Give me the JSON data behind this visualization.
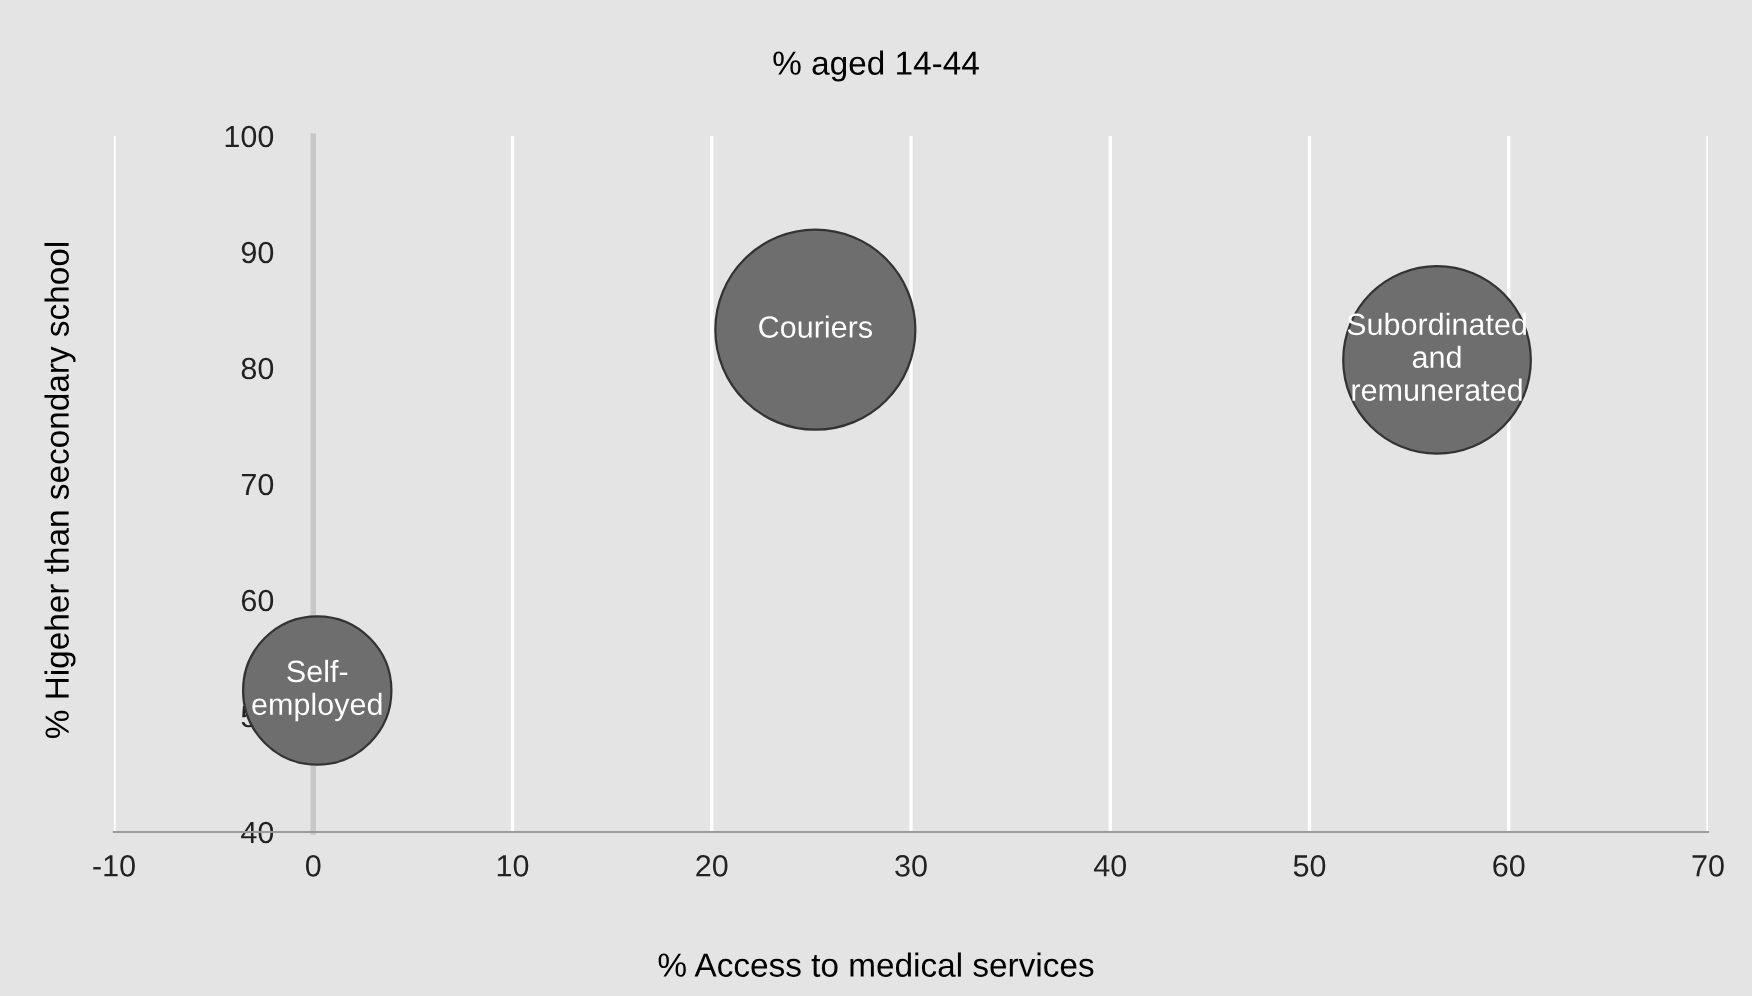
{
  "chart_data": {
    "type": "bubble",
    "title": "% aged 14-44",
    "xlabel": "% Access to medical services",
    "ylabel": "% Higeher than secondary school",
    "x": [
      0.2,
      25.2,
      56.4
    ],
    "series": [
      {
        "color": "#6e6e6e",
        "values": [
          52.2,
          83.3,
          80.7
        ],
        "sizes": [
          0.55,
          1,
          0.88
        ]
      }
    ],
    "annotations": [
      {
        "text": "Self-\nemployed",
        "x": 0.2,
        "y": 52.2
      },
      {
        "text": "Couriers",
        "x": 25.2,
        "y": 83.3
      },
      {
        "text": "Subordinated\nand\nremunerated",
        "x": 56.4,
        "y": 80.7
      }
    ],
    "xlim": [
      -10,
      70
    ],
    "xticks": [
      -10,
      0,
      10,
      20,
      30,
      40,
      50,
      60,
      70
    ],
    "ylim": [
      40,
      100
    ],
    "yticks": [
      40,
      50,
      60,
      70,
      80,
      90,
      100
    ],
    "grid": "x"
  }
}
